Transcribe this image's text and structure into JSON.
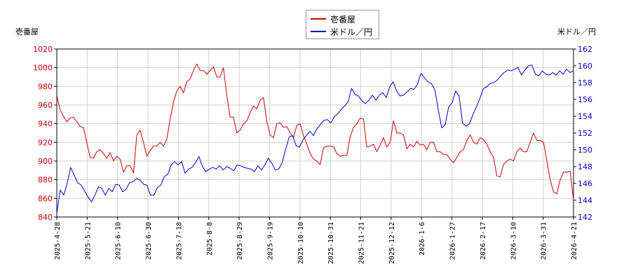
{
  "chart_data": {
    "type": "line",
    "legend": {
      "placement": "top-center"
    },
    "grid": true,
    "left_axis": {
      "title": "壱番屋",
      "range": [
        840,
        1020
      ],
      "ticks": [
        840,
        860,
        880,
        900,
        920,
        940,
        960,
        980,
        1000,
        1020
      ],
      "color": "#cc0000"
    },
    "right_axis": {
      "title": "米ドル／円",
      "range": [
        142,
        162
      ],
      "ticks": [
        142,
        144,
        146,
        148,
        150,
        152,
        154,
        156,
        158,
        160,
        162
      ],
      "color": "#0000cc"
    },
    "x_ticks": [
      "2025-4-28",
      "2025-5-21",
      "2025-6-10",
      "2025-6-30",
      "2025-7-18",
      "2025-8-8",
      "2025-8-29",
      "2025-9-19",
      "2025-10-10",
      "2025-10-31",
      "2025-11-21",
      "2025-12-12",
      "2026-1-6",
      "2026-1-27",
      "2026-2-17",
      "2026-3-10",
      "2026-3-31",
      "2026-4-21"
    ],
    "series": [
      {
        "name": "壱番屋",
        "axis": "left",
        "color": "#cc0000",
        "values": [
          970,
          955,
          948,
          942,
          946,
          947,
          942,
          937,
          936,
          920,
          904,
          903,
          910,
          912,
          908,
          903,
          909,
          900,
          905,
          902,
          888,
          895,
          895,
          887,
          928,
          933,
          920,
          905,
          911,
          916,
          916,
          920,
          916,
          923,
          945,
          963,
          975,
          980,
          973,
          985,
          988,
          997,
          1004,
          997,
          997,
          993,
          997,
          1001,
          990,
          990,
          1000,
          970,
          947,
          947,
          930,
          933,
          940,
          943,
          952,
          959,
          956,
          965,
          968,
          942,
          928,
          925,
          940,
          941,
          936,
          937,
          930,
          925,
          938,
          940,
          927,
          918,
          908,
          902,
          900,
          896,
          914,
          916,
          916,
          915,
          908,
          905,
          906,
          906,
          926,
          936,
          940,
          946,
          945,
          915,
          916,
          918,
          910,
          917,
          925,
          915,
          920,
          943,
          930,
          930,
          928,
          913,
          918,
          915,
          921,
          917,
          918,
          912,
          920,
          920,
          910,
          910,
          907,
          907,
          902,
          898,
          904,
          910,
          912,
          922,
          928,
          920,
          918,
          925,
          923,
          918,
          910,
          904,
          884,
          883,
          896,
          900,
          902,
          900,
          910,
          914,
          910,
          910,
          920,
          930,
          922,
          922,
          920,
          900,
          880,
          867,
          865,
          880,
          888,
          888,
          889,
          858
        ],
        "note": "estimated daily closes read off gridlines"
      },
      {
        "name": "米ドル／円",
        "axis": "right",
        "color": "#0000cc",
        "values": [
          142.4,
          145.2,
          144.6,
          146.0,
          147.9,
          147.0,
          146.1,
          145.8,
          145.1,
          144.4,
          143.8,
          144.6,
          145.6,
          145.4,
          144.6,
          145.4,
          145.0,
          145.9,
          145.8,
          145.0,
          145.3,
          146.1,
          146.2,
          146.6,
          146.4,
          145.9,
          145.8,
          144.6,
          144.6,
          145.5,
          145.8,
          146.8,
          147.1,
          148.2,
          148.6,
          148.2,
          148.6,
          147.2,
          147.7,
          147.9,
          148.5,
          149.2,
          148.0,
          147.4,
          147.7,
          147.9,
          147.7,
          148.1,
          147.6,
          148.0,
          147.8,
          147.5,
          148.2,
          148.1,
          147.9,
          147.8,
          147.7,
          147.4,
          148.1,
          147.6,
          148.2,
          149.0,
          148.4,
          147.6,
          147.7,
          148.5,
          150.1,
          151.5,
          151.7,
          150.5,
          150.3,
          151.2,
          151.7,
          152.2,
          151.7,
          152.5,
          153.0,
          153.5,
          153.6,
          153.2,
          153.9,
          154.3,
          154.8,
          155.2,
          155.7,
          157.3,
          156.6,
          156.4,
          155.8,
          155.5,
          155.9,
          156.5,
          155.9,
          156.5,
          156.8,
          156.2,
          157.5,
          158.1,
          157.0,
          156.4,
          156.5,
          156.9,
          157.3,
          157.2,
          157.8,
          159.1,
          158.6,
          158.1,
          157.9,
          157.2,
          154.8,
          152.6,
          153.0,
          155.1,
          155.6,
          157.0,
          156.4,
          153.2,
          152.8,
          153.1,
          154.2,
          155.1,
          156.1,
          157.3,
          157.5,
          157.9,
          158.0,
          158.3,
          158.8,
          159.2,
          159.5,
          159.4,
          159.6,
          159.8,
          158.9,
          159.5,
          160.0,
          160.1,
          159.0,
          158.8,
          159.4,
          159.0,
          158.9,
          159.2,
          158.9,
          159.4,
          159.0,
          159.6,
          159.2,
          159.4
        ],
        "note": "estimated daily rates read off gridlines"
      }
    ]
  }
}
